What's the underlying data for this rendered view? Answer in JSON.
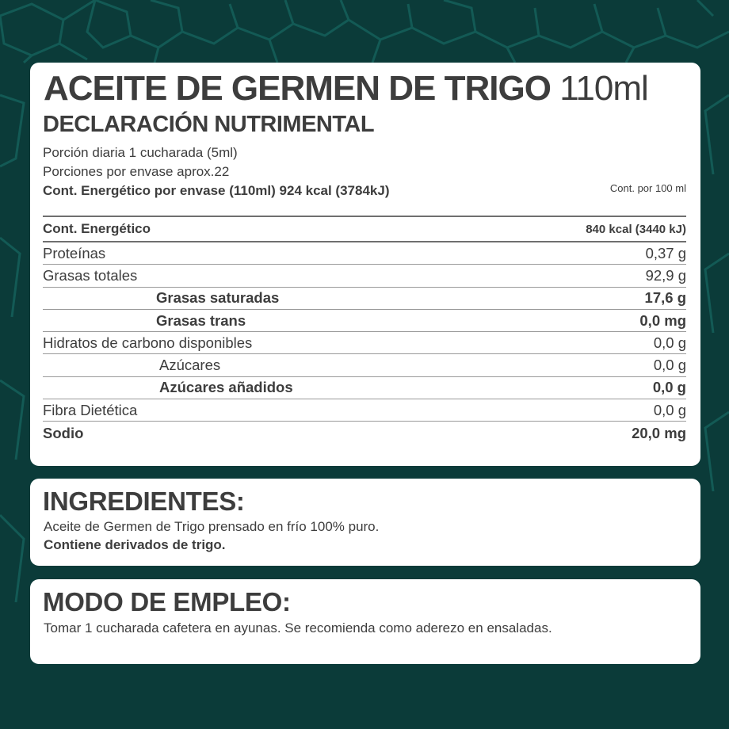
{
  "colors": {
    "background": "#0b3b39",
    "pattern": "#135a55",
    "card": "#ffffff",
    "text": "#3d3d3d"
  },
  "header": {
    "title": "ACEITE DE GERMEN DE TRIGO",
    "volume": "110ml",
    "subtitle": "DECLARACIÓN NUTRIMENTAL",
    "serving": "Porción diaria 1 cucharada (5ml)",
    "servings_per_container": "Porciones por envase aprox.22",
    "energy_per_container": "Cont. Energético por envase (110ml) 924 kcal (3784kJ)",
    "per_100_label": "Cont. por 100 ml"
  },
  "nutrition": {
    "rows": [
      {
        "label": "Cont. Energético",
        "value": "840 kcal (3440 kJ)"
      },
      {
        "label": "Proteínas",
        "value": "0,37 g"
      },
      {
        "label": "Grasas totales",
        "value": "92,9 g"
      },
      {
        "label": "Grasas saturadas",
        "value": "17,6 g"
      },
      {
        "label": "Grasas trans",
        "value": "0,0 mg"
      },
      {
        "label": "Hidratos de carbono disponibles",
        "value": "0,0 g"
      },
      {
        "label": "Azúcares",
        "value": "0,0 g"
      },
      {
        "label": "Azúcares añadidos",
        "value": "0,0 g"
      },
      {
        "label": "Fibra Dietética",
        "value": "0,0 g"
      },
      {
        "label": "Sodio",
        "value": "20,0 mg"
      }
    ]
  },
  "ingredients": {
    "title": "INGREDIENTES:",
    "text": "Aceite de Germen de Trigo prensado en frío 100% puro.",
    "allergen": "Contiene derivados de trigo."
  },
  "usage": {
    "title": "MODO DE EMPLEO:",
    "text": "Tomar 1 cucharada cafetera en ayunas. Se recomienda como aderezo en ensaladas."
  }
}
